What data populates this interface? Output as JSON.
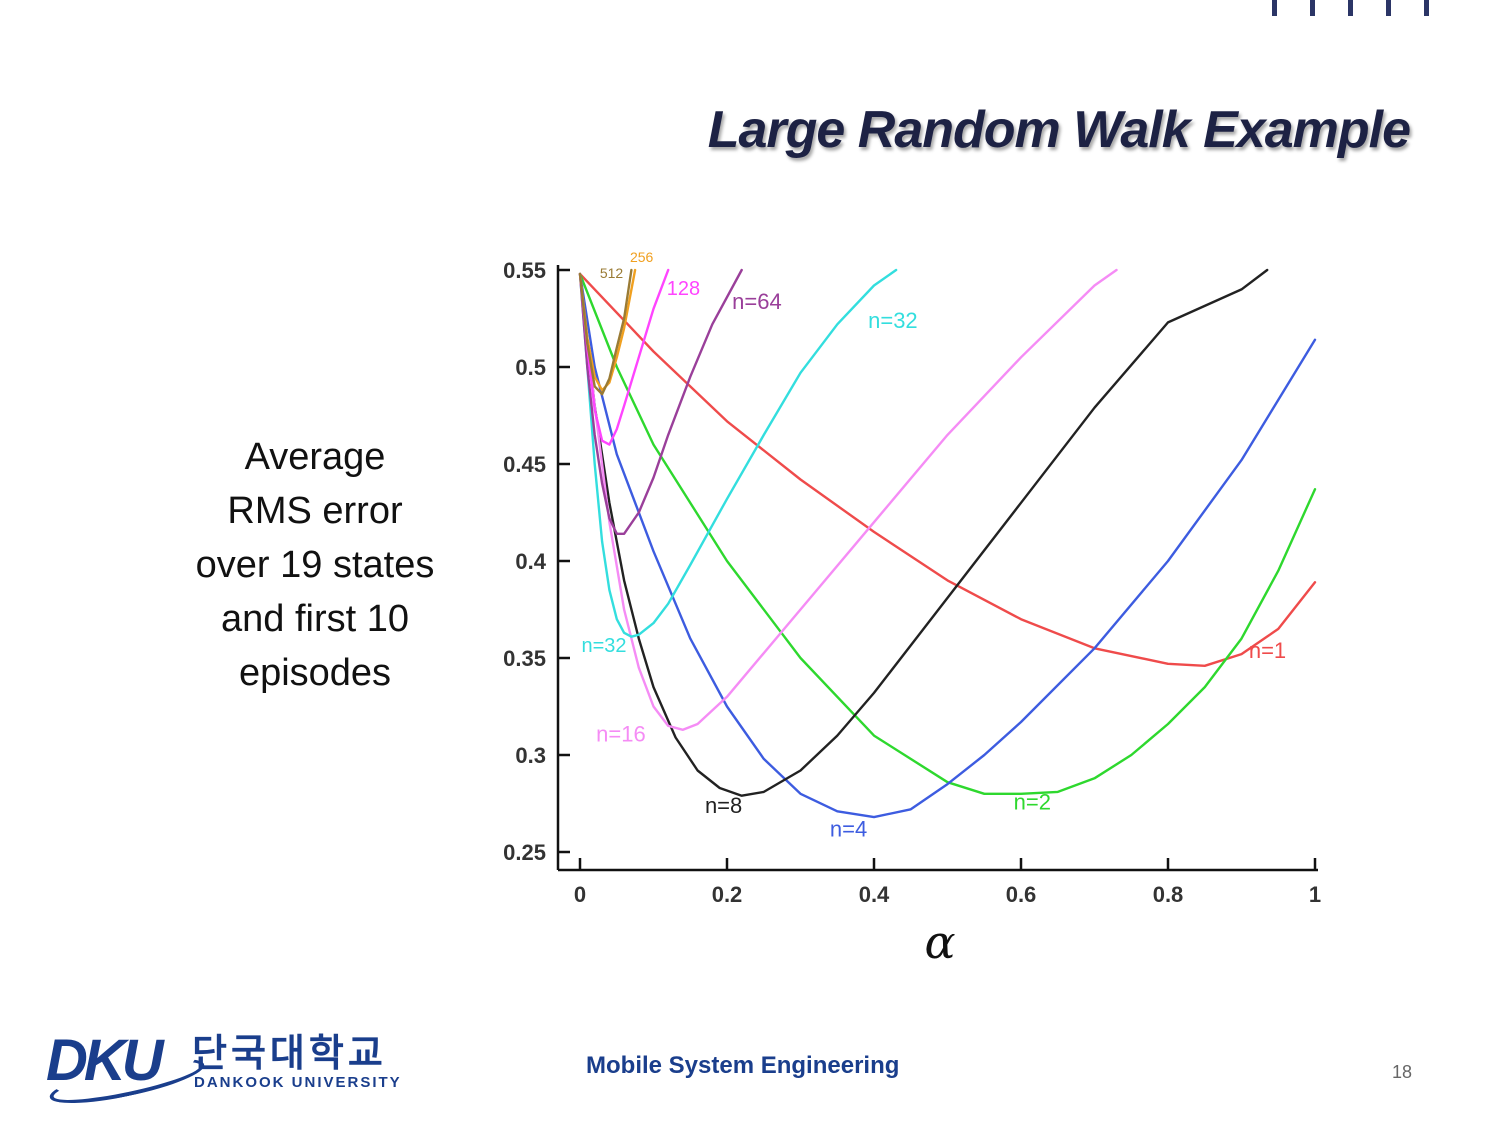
{
  "slide": {
    "title": "Large Random Walk Example",
    "ylabel_lines": [
      "Average",
      "RMS error",
      "over 19 states",
      "and first 10",
      "episodes"
    ],
    "footer_center": "Mobile System Engineering",
    "page_number": "18",
    "accent_color": "#1a3e8c"
  },
  "logo": {
    "mark": "DKU",
    "korean": "단국대학교",
    "english": "DANKOOK UNIVERSITY"
  },
  "chart_data": {
    "type": "line",
    "title": "",
    "xlabel": "α",
    "ylabel": "",
    "xlim": [
      0,
      1
    ],
    "ylim": [
      0.25,
      0.55
    ],
    "xticks": [
      "0",
      "0.2",
      "0.4",
      "0.6",
      "0.8",
      "1"
    ],
    "yticks": [
      "0.25",
      "0.3",
      "0.35",
      "0.4",
      "0.45",
      "0.5",
      "0.55"
    ],
    "grid": false,
    "series": [
      {
        "name": "n=1",
        "color": "#ef4b4b",
        "x": [
          0,
          0.1,
          0.2,
          0.3,
          0.4,
          0.5,
          0.6,
          0.7,
          0.8,
          0.85,
          0.9,
          0.95,
          1.0
        ],
        "y": [
          0.548,
          0.508,
          0.472,
          0.442,
          0.415,
          0.39,
          0.37,
          0.355,
          0.347,
          0.346,
          0.352,
          0.365,
          0.389
        ]
      },
      {
        "name": "n=2",
        "color": "#2ed82e",
        "x": [
          0,
          0.05,
          0.1,
          0.2,
          0.3,
          0.4,
          0.5,
          0.55,
          0.6,
          0.65,
          0.7,
          0.75,
          0.8,
          0.85,
          0.9,
          0.95,
          1.0
        ],
        "y": [
          0.548,
          0.5,
          0.46,
          0.4,
          0.35,
          0.31,
          0.286,
          0.28,
          0.28,
          0.281,
          0.288,
          0.3,
          0.316,
          0.335,
          0.36,
          0.395,
          0.437
        ]
      },
      {
        "name": "n=4",
        "color": "#3d5ce0",
        "x": [
          0,
          0.02,
          0.05,
          0.1,
          0.15,
          0.2,
          0.25,
          0.3,
          0.35,
          0.4,
          0.45,
          0.5,
          0.55,
          0.6,
          0.7,
          0.8,
          0.9,
          1.0
        ],
        "y": [
          0.548,
          0.5,
          0.455,
          0.405,
          0.36,
          0.325,
          0.298,
          0.28,
          0.271,
          0.268,
          0.272,
          0.285,
          0.3,
          0.317,
          0.355,
          0.4,
          0.452,
          0.514
        ]
      },
      {
        "name": "n=8",
        "color": "#222222",
        "x": [
          0,
          0.02,
          0.04,
          0.06,
          0.08,
          0.1,
          0.13,
          0.16,
          0.19,
          0.22,
          0.25,
          0.3,
          0.35,
          0.4,
          0.5,
          0.6,
          0.7,
          0.8,
          0.9,
          0.935
        ],
        "y": [
          0.548,
          0.48,
          0.43,
          0.39,
          0.36,
          0.335,
          0.309,
          0.292,
          0.283,
          0.279,
          0.281,
          0.292,
          0.31,
          0.332,
          0.381,
          0.43,
          0.479,
          0.523,
          0.54,
          0.55
        ]
      },
      {
        "name": "n=16",
        "color": "#f58cf5",
        "x": [
          0,
          0.02,
          0.04,
          0.06,
          0.08,
          0.1,
          0.12,
          0.14,
          0.16,
          0.2,
          0.3,
          0.4,
          0.5,
          0.6,
          0.7,
          0.73
        ],
        "y": [
          0.548,
          0.48,
          0.42,
          0.375,
          0.345,
          0.325,
          0.315,
          0.313,
          0.316,
          0.33,
          0.375,
          0.42,
          0.465,
          0.505,
          0.542,
          0.55
        ]
      },
      {
        "name": "n=32",
        "color": "#33dede",
        "x": [
          0,
          0.01,
          0.02,
          0.03,
          0.04,
          0.05,
          0.06,
          0.07,
          0.08,
          0.1,
          0.12,
          0.15,
          0.2,
          0.25,
          0.3,
          0.35,
          0.4,
          0.43
        ],
        "y": [
          0.548,
          0.5,
          0.45,
          0.41,
          0.385,
          0.37,
          0.363,
          0.361,
          0.362,
          0.368,
          0.378,
          0.398,
          0.432,
          0.465,
          0.497,
          0.522,
          0.542,
          0.55
        ]
      },
      {
        "name": "n=64",
        "color": "#9a3f9a",
        "x": [
          0,
          0.01,
          0.02,
          0.03,
          0.04,
          0.05,
          0.06,
          0.08,
          0.1,
          0.12,
          0.15,
          0.18,
          0.22
        ],
        "y": [
          0.548,
          0.5,
          0.465,
          0.44,
          0.422,
          0.414,
          0.414,
          0.425,
          0.443,
          0.465,
          0.495,
          0.522,
          0.55
        ]
      },
      {
        "name": "128",
        "color": "#ff44ff",
        "x": [
          0,
          0.01,
          0.02,
          0.03,
          0.04,
          0.05,
          0.06,
          0.08,
          0.1,
          0.12
        ],
        "y": [
          0.548,
          0.51,
          0.478,
          0.462,
          0.46,
          0.468,
          0.48,
          0.505,
          0.53,
          0.55
        ]
      },
      {
        "name": "256",
        "color": "#f0a020",
        "x": [
          0,
          0.01,
          0.02,
          0.03,
          0.04,
          0.05,
          0.06,
          0.075
        ],
        "y": [
          0.548,
          0.515,
          0.495,
          0.488,
          0.492,
          0.505,
          0.52,
          0.55
        ]
      },
      {
        "name": "512",
        "color": "#9a7b35",
        "x": [
          0,
          0.01,
          0.02,
          0.03,
          0.04,
          0.05,
          0.06,
          0.07
        ],
        "y": [
          0.548,
          0.512,
          0.49,
          0.486,
          0.494,
          0.51,
          0.525,
          0.55
        ]
      }
    ],
    "annotations": [
      {
        "text": "n=1",
        "x": 0.91,
        "y": 0.35,
        "color": "#ef4b4b",
        "size": 22
      },
      {
        "text": "n=2",
        "x": 0.59,
        "y": 0.272,
        "color": "#2ed82e",
        "size": 22
      },
      {
        "text": "n=4",
        "x": 0.34,
        "y": 0.258,
        "color": "#3d5ce0",
        "size": 22
      },
      {
        "text": "n=8",
        "x": 0.17,
        "y": 0.27,
        "color": "#222222",
        "size": 22
      },
      {
        "text": "n=16",
        "x": 0.022,
        "y": 0.307,
        "color": "#f58cf5",
        "size": 22
      },
      {
        "text": "n=32",
        "x": 0.002,
        "y": 0.353,
        "color": "#33dede",
        "size": 20
      },
      {
        "text": "n=32",
        "x": 0.392,
        "y": 0.52,
        "color": "#33dede",
        "size": 22
      },
      {
        "text": "n=64",
        "x": 0.207,
        "y": 0.53,
        "color": "#9a3f9a",
        "size": 22
      },
      {
        "text": "128",
        "x": 0.118,
        "y": 0.537,
        "color": "#ff44ff",
        "size": 20
      },
      {
        "text": "256",
        "x": 0.068,
        "y": 0.554,
        "color": "#f0a020",
        "size": 14
      },
      {
        "text": "512",
        "x": 0.027,
        "y": 0.546,
        "color": "#9a7b35",
        "size": 14
      }
    ]
  }
}
